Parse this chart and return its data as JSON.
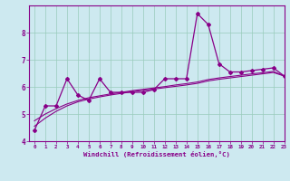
{
  "x": [
    0,
    1,
    2,
    3,
    4,
    5,
    6,
    7,
    8,
    9,
    10,
    11,
    12,
    13,
    14,
    15,
    16,
    17,
    18,
    19,
    20,
    21,
    22,
    23
  ],
  "y_line": [
    4.4,
    5.3,
    5.3,
    6.3,
    5.7,
    5.5,
    6.3,
    5.8,
    5.8,
    5.8,
    5.8,
    5.9,
    6.3,
    6.3,
    6.3,
    8.7,
    8.3,
    6.85,
    6.55,
    6.55,
    6.6,
    6.65,
    6.7,
    6.4
  ],
  "y_trend1": [
    4.55,
    4.85,
    5.1,
    5.3,
    5.45,
    5.55,
    5.63,
    5.7,
    5.76,
    5.82,
    5.87,
    5.92,
    5.97,
    6.02,
    6.07,
    6.13,
    6.22,
    6.28,
    6.33,
    6.38,
    6.43,
    6.48,
    6.53,
    6.4
  ],
  "y_trend2": [
    4.75,
    5.0,
    5.2,
    5.37,
    5.5,
    5.6,
    5.67,
    5.74,
    5.8,
    5.86,
    5.91,
    5.96,
    6.01,
    6.07,
    6.12,
    6.18,
    6.27,
    6.33,
    6.38,
    6.43,
    6.48,
    6.52,
    6.57,
    6.4
  ],
  "xlabel": "Windchill (Refroidissement éolien,°C)",
  "bg_color": "#cde9f0",
  "line_color": "#880088",
  "grid_color": "#99ccbb",
  "ylim": [
    4.0,
    9.0
  ],
  "xlim": [
    -0.5,
    23
  ],
  "yticks": [
    4,
    5,
    6,
    7,
    8
  ],
  "xticks": [
    0,
    1,
    2,
    3,
    4,
    5,
    6,
    7,
    8,
    9,
    10,
    11,
    12,
    13,
    14,
    15,
    16,
    17,
    18,
    19,
    20,
    21,
    22,
    23
  ]
}
